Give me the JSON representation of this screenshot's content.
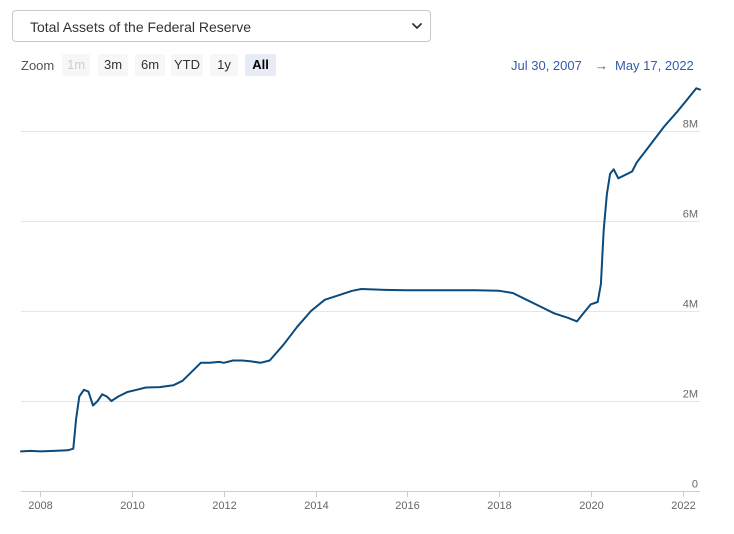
{
  "series_select": {
    "value": "Total Assets of the Federal Reserve",
    "icon": "chevron-down-icon"
  },
  "range_selector": {
    "zoom_label": "Zoom",
    "buttons": [
      {
        "label": "1m",
        "state": "disabled"
      },
      {
        "label": "3m",
        "state": "normal"
      },
      {
        "label": "6m",
        "state": "normal"
      },
      {
        "label": "YTD",
        "state": "normal"
      },
      {
        "label": "1y",
        "state": "normal"
      },
      {
        "label": "All",
        "state": "selected"
      }
    ],
    "from": "Jul 30, 2007",
    "separator": "→",
    "to": "May 17, 2022"
  },
  "colors": {
    "line": "#0b4a7d",
    "grid": "#e6e6e6",
    "axis_text": "#666666",
    "range_text": "#335cad",
    "selected_button": "#e6ebf5"
  },
  "chart_data": {
    "type": "line",
    "title": "",
    "xlabel": "",
    "ylabel": "",
    "xlim": [
      2007.58,
      2022.38
    ],
    "ylim": [
      0,
      9000000
    ],
    "x_ticks": [
      2008,
      2010,
      2012,
      2014,
      2016,
      2018,
      2020,
      2022
    ],
    "x_tick_labels": [
      "2008",
      "2010",
      "2012",
      "2014",
      "2016",
      "2018",
      "2020",
      "2022"
    ],
    "y_ticks": [
      0,
      2000000,
      4000000,
      6000000,
      8000000
    ],
    "y_tick_labels": [
      "0",
      "2M",
      "4M",
      "6M",
      "8M"
    ],
    "grid": true,
    "legend": "none",
    "series": [
      {
        "x": [
          2007.58,
          2007.8,
          2008.0,
          2008.3,
          2008.6,
          2008.72,
          2008.78,
          2008.85,
          2008.95,
          2009.05,
          2009.15,
          2009.25,
          2009.35,
          2009.45,
          2009.55,
          2009.7,
          2009.9,
          2010.1,
          2010.3,
          2010.6,
          2010.9,
          2011.1,
          2011.3,
          2011.5,
          2011.7,
          2011.9,
          2012.0,
          2012.2,
          2012.4,
          2012.6,
          2012.8,
          2013.0,
          2013.3,
          2013.6,
          2013.9,
          2014.2,
          2014.5,
          2014.8,
          2015.0,
          2015.5,
          2016.0,
          2016.5,
          2017.0,
          2017.5,
          2018.0,
          2018.3,
          2018.6,
          2018.9,
          2019.2,
          2019.5,
          2019.7,
          2019.8,
          2020.0,
          2020.15,
          2020.22,
          2020.28,
          2020.35,
          2020.42,
          2020.5,
          2020.6,
          2020.9,
          2021.0,
          2021.3,
          2021.6,
          2021.9,
          2022.1,
          2022.3,
          2022.38
        ],
        "y": [
          880000,
          890000,
          880000,
          890000,
          905000,
          940000,
          1600000,
          2100000,
          2250000,
          2210000,
          1900000,
          2000000,
          2150000,
          2100000,
          2000000,
          2100000,
          2200000,
          2250000,
          2300000,
          2310000,
          2350000,
          2450000,
          2650000,
          2850000,
          2850000,
          2870000,
          2850000,
          2900000,
          2900000,
          2880000,
          2850000,
          2900000,
          3250000,
          3650000,
          4000000,
          4250000,
          4350000,
          4450000,
          4490000,
          4470000,
          4460000,
          4460000,
          4460000,
          4460000,
          4450000,
          4400000,
          4250000,
          4100000,
          3950000,
          3850000,
          3770000,
          3900000,
          4150000,
          4200000,
          4600000,
          5800000,
          6600000,
          7050000,
          7150000,
          6950000,
          7100000,
          7300000,
          7700000,
          8100000,
          8450000,
          8700000,
          8950000,
          8920000
        ]
      }
    ]
  }
}
